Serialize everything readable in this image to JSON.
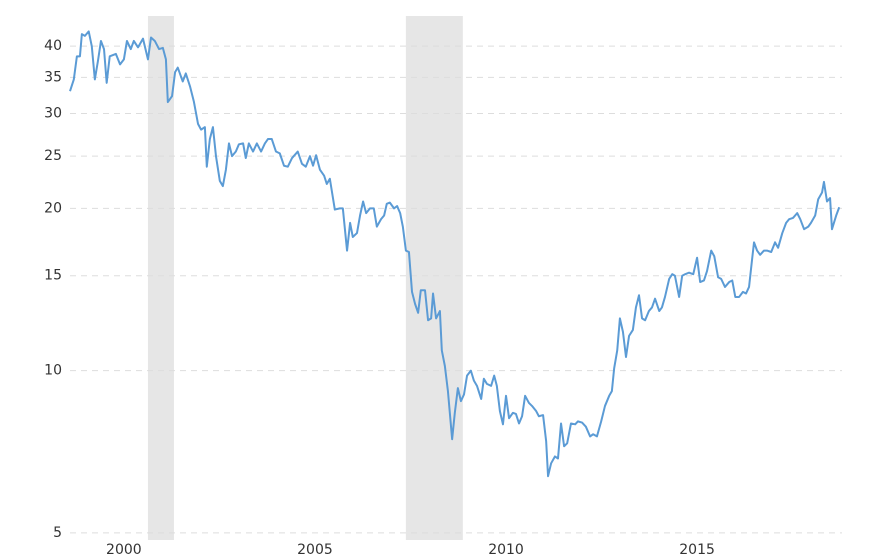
{
  "chart_data": {
    "type": "line",
    "x": [
      1998.59,
      1998.69,
      1998.77,
      1998.85,
      1998.9,
      1998.98,
      1999.08,
      1999.16,
      1999.24,
      1999.32,
      1999.4,
      1999.48,
      1999.55,
      1999.63,
      1999.79,
      1999.9,
      2000.0,
      2000.08,
      2000.18,
      2000.26,
      2000.37,
      2000.5,
      2000.63,
      2000.71,
      2000.81,
      2000.92,
      2001.02,
      2001.1,
      2001.15,
      2001.26,
      2001.34,
      2001.41,
      2001.54,
      2001.62,
      2001.73,
      2001.83,
      2001.94,
      2002.02,
      2002.12,
      2002.17,
      2002.25,
      2002.33,
      2002.41,
      2002.51,
      2002.59,
      2002.67,
      2002.75,
      2002.83,
      2002.93,
      2003.01,
      2003.12,
      2003.19,
      2003.27,
      2003.38,
      2003.48,
      2003.59,
      2003.69,
      2003.77,
      2003.87,
      2003.98,
      2004.08,
      2004.19,
      2004.29,
      2004.4,
      2004.55,
      2004.66,
      2004.76,
      2004.87,
      2004.95,
      2005.03,
      2005.13,
      2005.24,
      2005.31,
      2005.39,
      2005.52,
      2005.65,
      2005.73,
      2005.84,
      2005.92,
      2005.99,
      2006.1,
      2006.18,
      2006.26,
      2006.34,
      2006.44,
      2006.54,
      2006.62,
      2006.73,
      2006.81,
      2006.88,
      2006.96,
      2007.07,
      2007.15,
      2007.23,
      2007.3,
      2007.38,
      2007.46,
      2007.54,
      2007.62,
      2007.7,
      2007.77,
      2007.88,
      2007.96,
      2008.04,
      2008.09,
      2008.17,
      2008.27,
      2008.32,
      2008.4,
      2008.48,
      2008.59,
      2008.66,
      2008.74,
      2008.82,
      2008.9,
      2008.98,
      2009.08,
      2009.16,
      2009.24,
      2009.35,
      2009.42,
      2009.5,
      2009.61,
      2009.69,
      2009.76,
      2009.84,
      2009.92,
      2010.0,
      2010.08,
      2010.18,
      2010.26,
      2010.34,
      2010.42,
      2010.5,
      2010.6,
      2010.68,
      2010.79,
      2010.86,
      2010.97,
      2011.05,
      2011.1,
      2011.18,
      2011.28,
      2011.36,
      2011.44,
      2011.52,
      2011.6,
      2011.7,
      2011.81,
      2011.88,
      2011.99,
      2012.09,
      2012.2,
      2012.28,
      2012.38,
      2012.49,
      2012.59,
      2012.7,
      2012.77,
      2012.83,
      2012.91,
      2012.98,
      2013.06,
      2013.14,
      2013.22,
      2013.32,
      2013.4,
      2013.48,
      2013.56,
      2013.64,
      2013.74,
      2013.82,
      2013.9,
      2014.01,
      2014.08,
      2014.16,
      2014.27,
      2014.35,
      2014.42,
      2014.53,
      2014.61,
      2014.69,
      2014.79,
      2014.9,
      2015.0,
      2015.08,
      2015.18,
      2015.26,
      2015.37,
      2015.45,
      2015.55,
      2015.63,
      2015.73,
      2015.84,
      2015.92,
      2016.0,
      2016.1,
      2016.2,
      2016.28,
      2016.36,
      2016.44,
      2016.49,
      2016.57,
      2016.65,
      2016.75,
      2016.83,
      2016.94,
      2017.04,
      2017.12,
      2017.23,
      2017.33,
      2017.41,
      2017.51,
      2017.62,
      2017.7,
      2017.8,
      2017.91,
      2017.98,
      2018.09,
      2018.17,
      2018.27,
      2018.32,
      2018.4,
      2018.48,
      2018.53,
      2018.64,
      2018.72
    ],
    "series": [
      {
        "color": "#5b9bd5",
        "values": [
          33.0,
          34.7,
          38.3,
          38.3,
          42.1,
          41.8,
          42.6,
          40.0,
          34.7,
          37.5,
          40.9,
          39.5,
          34.2,
          38.3,
          38.7,
          37.0,
          37.8,
          40.9,
          39.5,
          40.9,
          39.8,
          41.3,
          37.8,
          41.5,
          40.9,
          39.5,
          39.7,
          37.8,
          31.5,
          32.3,
          35.8,
          36.5,
          34.4,
          35.6,
          33.7,
          31.6,
          28.7,
          28.0,
          28.3,
          23.9,
          26.9,
          28.3,
          25.0,
          22.5,
          22.0,
          23.6,
          26.4,
          25.0,
          25.5,
          26.3,
          26.4,
          24.8,
          26.4,
          25.5,
          26.4,
          25.5,
          26.4,
          26.9,
          26.9,
          25.5,
          25.3,
          24.0,
          23.9,
          24.8,
          25.5,
          24.2,
          23.9,
          25.0,
          24.0,
          25.1,
          23.6,
          23.0,
          22.2,
          22.7,
          19.9,
          20.0,
          20.0,
          16.7,
          18.8,
          17.7,
          18.0,
          19.4,
          20.6,
          19.6,
          20.0,
          20.0,
          18.5,
          19.1,
          19.4,
          20.4,
          20.5,
          20.0,
          20.2,
          19.6,
          18.5,
          16.7,
          16.6,
          14.0,
          13.3,
          12.8,
          14.1,
          14.1,
          12.4,
          12.5,
          13.9,
          12.5,
          12.9,
          10.9,
          10.2,
          9.16,
          7.46,
          8.35,
          9.28,
          8.78,
          9.03,
          9.79,
          10.0,
          9.58,
          9.37,
          8.86,
          9.66,
          9.45,
          9.37,
          9.79,
          9.37,
          8.41,
          7.95,
          8.98,
          8.16,
          8.35,
          8.31,
          7.98,
          8.23,
          8.98,
          8.71,
          8.6,
          8.41,
          8.23,
          8.27,
          7.4,
          6.37,
          6.73,
          6.93,
          6.87,
          7.98,
          7.24,
          7.33,
          7.98,
          7.95,
          8.05,
          8.01,
          7.87,
          7.55,
          7.62,
          7.55,
          8.05,
          8.6,
          8.98,
          9.16,
          10.1,
          10.9,
          12.5,
          11.8,
          10.6,
          11.6,
          11.9,
          13.1,
          13.8,
          12.5,
          12.4,
          12.9,
          13.1,
          13.6,
          12.9,
          13.1,
          13.7,
          14.8,
          15.1,
          15.0,
          13.7,
          15.0,
          15.1,
          15.2,
          15.1,
          16.2,
          14.6,
          14.7,
          15.3,
          16.7,
          16.3,
          14.9,
          14.8,
          14.3,
          14.6,
          14.7,
          13.7,
          13.7,
          14.0,
          13.9,
          14.3,
          16.1,
          17.3,
          16.7,
          16.4,
          16.7,
          16.7,
          16.6,
          17.3,
          16.9,
          18.0,
          18.8,
          19.1,
          19.2,
          19.6,
          19.1,
          18.3,
          18.5,
          18.8,
          19.4,
          20.8,
          21.4,
          22.4,
          20.6,
          20.9,
          18.3,
          19.4,
          20.1
        ]
      }
    ],
    "recessions": [
      [
        2000.63,
        2001.31
      ],
      [
        2007.38,
        2008.87
      ]
    ],
    "recession_color": "#e6e6e6",
    "xlim": [
      1998.59,
      2018.74
    ],
    "xticks": [
      2000,
      2005,
      2010,
      2015
    ],
    "ylim": [
      4.85,
      45.5
    ],
    "yticks": [
      5,
      10,
      15,
      20,
      25,
      30,
      35,
      40
    ],
    "log_y": true,
    "grid": true
  }
}
